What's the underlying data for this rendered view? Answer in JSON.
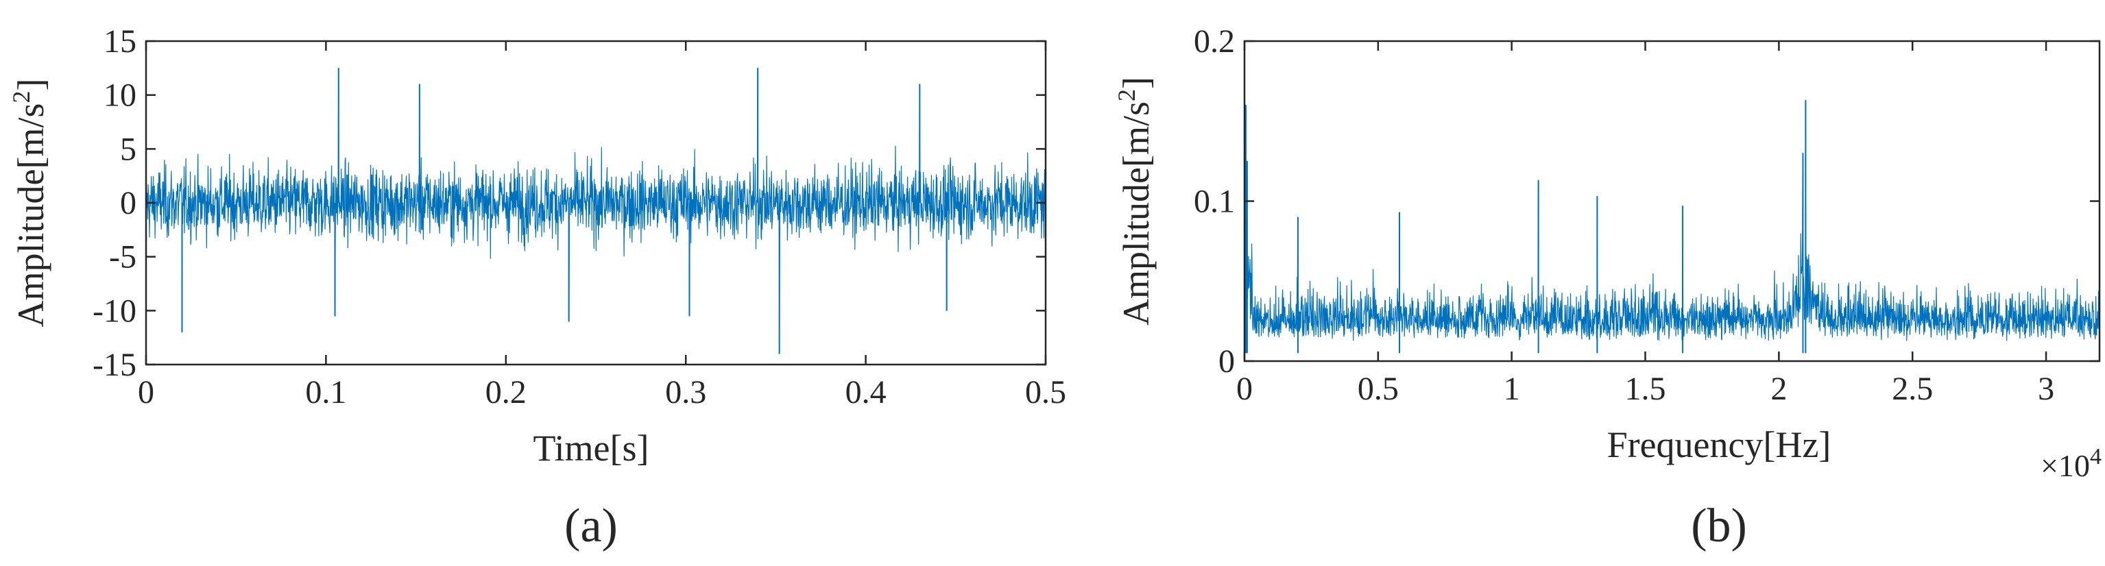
{
  "series_color": "#0072bd",
  "axis_color": "#262626",
  "chart_data": [
    {
      "type": "line",
      "caption": "(a)",
      "xlabel": "Time[s]",
      "ylabel": "Amplitude[m/s",
      "ylabel_superscript": "2",
      "ylabel_suffix": "]",
      "xlim": [
        0,
        0.5
      ],
      "ylim": [
        -15,
        15
      ],
      "xticks": [
        0,
        0.1,
        0.2,
        0.3,
        0.4,
        0.5
      ],
      "xtick_labels": [
        "0",
        "0.1",
        "0.2",
        "0.3",
        "0.4",
        "0.5"
      ],
      "yticks": [
        -15,
        -10,
        -5,
        0,
        5,
        10,
        15
      ],
      "ytick_labels": [
        "-15",
        "-10",
        "-5",
        "0",
        "5",
        "10",
        "15"
      ],
      "grid": false,
      "legend": "none",
      "signal": {
        "description": "vibration time signal, dense noise",
        "typical_range": [
          -6,
          6
        ],
        "peaks": [
          {
            "x": 0.107,
            "y": 12.5
          },
          {
            "x": 0.34,
            "y": 12.5
          },
          {
            "x": 0.152,
            "y": 11
          },
          {
            "x": 0.43,
            "y": 11
          },
          {
            "x": 0.352,
            "y": -14
          },
          {
            "x": 0.02,
            "y": -12
          },
          {
            "x": 0.105,
            "y": -10.5
          },
          {
            "x": 0.235,
            "y": -11
          },
          {
            "x": 0.302,
            "y": -10.5
          },
          {
            "x": 0.445,
            "y": -10
          }
        ]
      }
    },
    {
      "type": "line",
      "caption": "(b)",
      "xlabel": "Frequency[Hz]",
      "ylabel": "Amplitude[m/s",
      "ylabel_superscript": "2",
      "ylabel_suffix": "]",
      "x_multiplier": "×10",
      "x_multiplier_exponent": "4",
      "xlim": [
        0,
        3.2
      ],
      "ylim": [
        0,
        0.2
      ],
      "xticks": [
        0,
        0.5,
        1,
        1.5,
        2,
        2.5,
        3
      ],
      "xtick_labels": [
        "0",
        "0.5",
        "1",
        "1.5",
        "2",
        "2.5",
        "3"
      ],
      "yticks": [
        0,
        0.1,
        0.2
      ],
      "ytick_labels": [
        "0",
        "0.1",
        "0.2"
      ],
      "grid": false,
      "legend": "none",
      "signal": {
        "description": "amplitude spectrum, noise floor with resonance near 2.1e4 Hz",
        "typical_range": [
          0.005,
          0.06
        ],
        "peaks": [
          {
            "x": 0.005,
            "y": 0.16
          },
          {
            "x": 0.01,
            "y": 0.125
          },
          {
            "x": 2.1,
            "y": 0.163
          },
          {
            "x": 2.09,
            "y": 0.13
          },
          {
            "x": 1.1,
            "y": 0.113
          },
          {
            "x": 1.32,
            "y": 0.103
          },
          {
            "x": 0.58,
            "y": 0.093
          },
          {
            "x": 1.64,
            "y": 0.097
          },
          {
            "x": 0.2,
            "y": 0.09
          }
        ]
      }
    }
  ]
}
